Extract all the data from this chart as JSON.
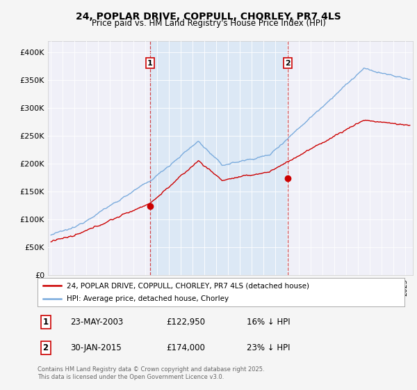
{
  "title": "24, POPLAR DRIVE, COPPULL, CHORLEY, PR7 4LS",
  "subtitle": "Price paid vs. HM Land Registry's House Price Index (HPI)",
  "ylim": [
    0,
    420000
  ],
  "yticks": [
    0,
    50000,
    100000,
    150000,
    200000,
    250000,
    300000,
    350000,
    400000
  ],
  "ytick_labels": [
    "£0",
    "£50K",
    "£100K",
    "£150K",
    "£200K",
    "£250K",
    "£300K",
    "£350K",
    "£400K"
  ],
  "background_color": "#f5f5f5",
  "plot_bg_color": "#f0f0f8",
  "grid_color": "#ffffff",
  "hpi_color": "#7aabdd",
  "price_color": "#cc0000",
  "shade_color": "#dce8f5",
  "marker1_year": 2003,
  "marker1_month": 5,
  "marker1_day": 23,
  "marker1_price": 122950,
  "marker2_year": 2015,
  "marker2_month": 1,
  "marker2_day": 30,
  "marker2_price": 174000,
  "legend_entry1": "24, POPLAR DRIVE, COPPULL, CHORLEY, PR7 4LS (detached house)",
  "legend_entry2": "HPI: Average price, detached house, Chorley",
  "ann_label1": "1",
  "ann_date1": "23-MAY-2003",
  "ann_price1": "£122,950",
  "ann_hpi1": "16% ↓ HPI",
  "ann_label2": "2",
  "ann_date2": "30-JAN-2015",
  "ann_price2": "£174,000",
  "ann_hpi2": "23% ↓ HPI",
  "footer": "Contains HM Land Registry data © Crown copyright and database right 2025.\nThis data is licensed under the Open Government Licence v3.0."
}
